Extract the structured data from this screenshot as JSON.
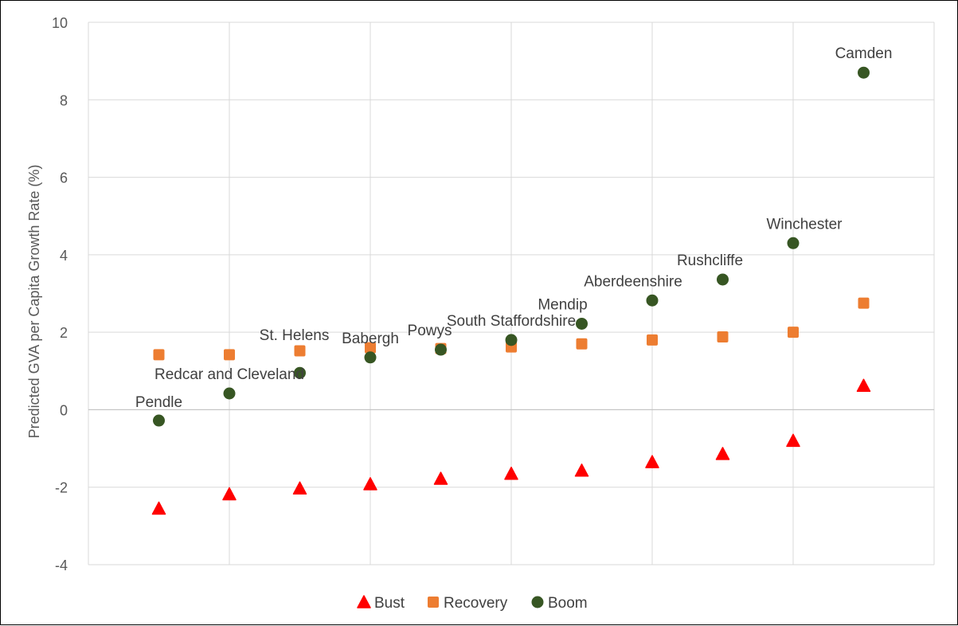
{
  "chart_data": {
    "type": "scatter",
    "title": "",
    "xlabel": "",
    "ylabel": "Predicted GVA per Capita Growth Rate (%)",
    "ylim": [
      -4,
      10
    ],
    "yticks": [
      "-4",
      "-2",
      "0",
      "2",
      "4",
      "6",
      "8",
      "10"
    ],
    "y_tick_values": [
      -4,
      -2,
      0,
      2,
      4,
      6,
      8,
      10
    ],
    "x": [
      1,
      2,
      3,
      4,
      5,
      6,
      7,
      8,
      9,
      10,
      11
    ],
    "xlim": [
      0,
      12
    ],
    "grid": true,
    "legend_position": "bottom",
    "point_labels": [
      "Pendle",
      "Redcar and Cleveland",
      "St. Helens",
      "Babergh",
      "Powys",
      "South Staffordshire",
      "Mendip",
      "Aberdeenshire",
      "Rushcliffe",
      "Winchester",
      "Camden"
    ],
    "series": [
      {
        "name": "Bust",
        "marker": "triangle",
        "color": "#ff0000",
        "values": [
          -2.55,
          -2.18,
          -2.03,
          -1.92,
          -1.78,
          -1.65,
          -1.57,
          -1.35,
          -1.14,
          -0.8,
          0.62
        ]
      },
      {
        "name": "Recovery",
        "marker": "square",
        "color": "#ed7d31",
        "values": [
          1.42,
          1.42,
          1.52,
          1.6,
          1.58,
          1.62,
          1.7,
          1.8,
          1.88,
          2.0,
          2.75
        ]
      },
      {
        "name": "Boom",
        "marker": "circle",
        "color": "#375623",
        "values": [
          -0.28,
          0.42,
          0.95,
          1.35,
          1.55,
          1.8,
          2.22,
          2.82,
          3.36,
          4.3,
          8.7
        ]
      }
    ]
  }
}
